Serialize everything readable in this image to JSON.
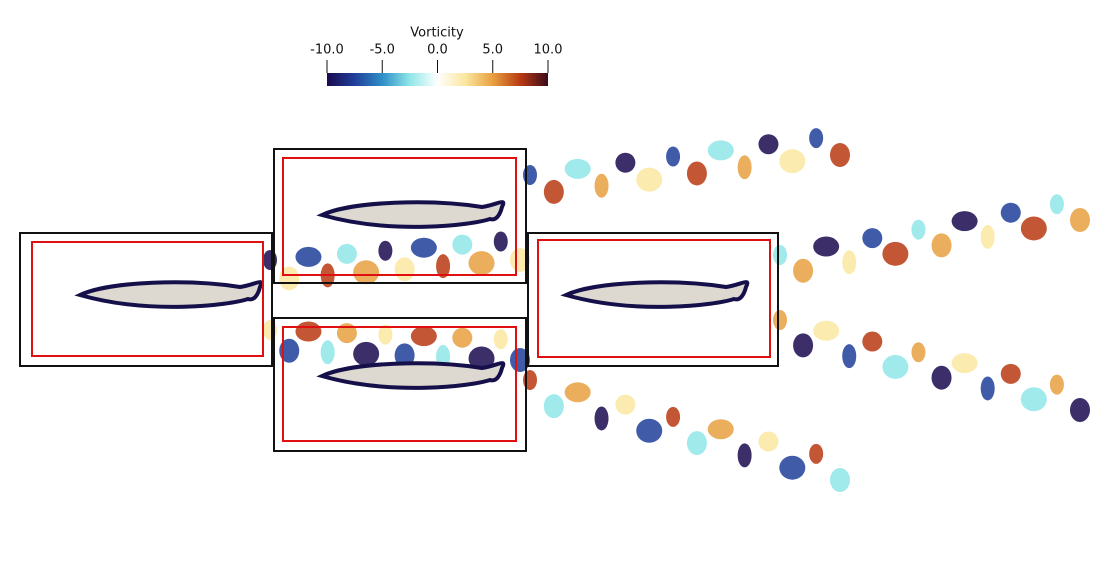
{
  "colorbar": {
    "title": "Vorticity",
    "lim": [
      -10,
      10
    ],
    "ticks": [
      {
        "value": -10,
        "label": "-10.0"
      },
      {
        "value": -5,
        "label": "-5.0"
      },
      {
        "value": 0,
        "label": "0.0"
      },
      {
        "value": 5,
        "label": "5.0"
      },
      {
        "value": 10,
        "label": "10.0"
      }
    ],
    "colors": [
      "#1a0a4f",
      "#1f3f9a",
      "#2f8fc8",
      "#8fe6e8",
      "#ffffff",
      "#fbe7a0",
      "#e8a040",
      "#b83a12",
      "#3b0a1a"
    ]
  }
}
